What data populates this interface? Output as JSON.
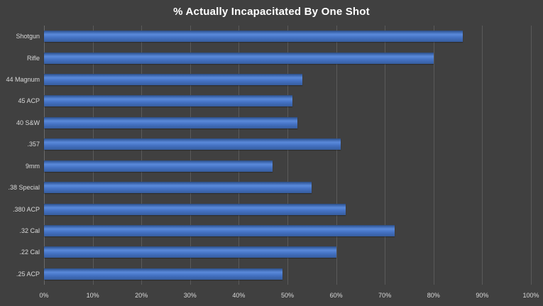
{
  "chart_data": {
    "type": "bar",
    "orientation": "horizontal",
    "title": "% Actually Incapacitated By One Shot",
    "categories": [
      "Shotgun",
      "Rifle",
      "44 Magnum",
      "45 ACP",
      "40 S&W",
      ".357",
      "9mm",
      ".38 Special",
      ".380 ACP",
      ".32 Cal",
      ".22 Cal",
      ".25 ACP"
    ],
    "values": [
      86,
      80,
      53,
      51,
      52,
      61,
      47,
      55,
      62,
      72,
      60,
      49
    ],
    "xlabel": "",
    "ylabel": "",
    "xlim": [
      0,
      100
    ],
    "x_tick_labels": [
      "0%",
      "10%",
      "20%",
      "30%",
      "40%",
      "50%",
      "60%",
      "70%",
      "80%",
      "90%",
      "100%"
    ],
    "grid": true,
    "legend": "none",
    "colors": {
      "background": "#404040",
      "bar": "#4472C4",
      "gridline": "#5a5a5a",
      "text": "#d9d9d9",
      "title": "#ffffff"
    }
  }
}
